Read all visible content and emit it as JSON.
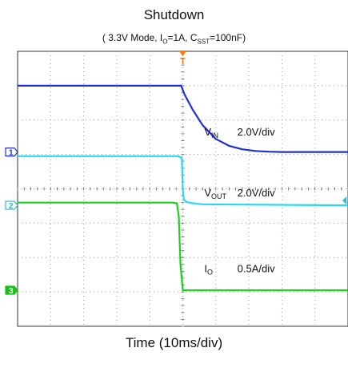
{
  "chart_data": {
    "type": "line",
    "title": "Shutdown",
    "subtitle": {
      "prefix": "( 3.3V Mode, I",
      "io_sub": "O",
      "mid": "=1A, C",
      "c_sub": "SST",
      "suffix": "=100nF)"
    },
    "xlabel": "Time (10ms/div)",
    "grid": true,
    "xlim": [
      0,
      10
    ],
    "ylim": [
      0,
      8
    ],
    "x_unit": "div",
    "event_marker": {
      "label": "T",
      "x": 5.0,
      "color": "#ff7a00"
    },
    "series": [
      {
        "name": "V_IN",
        "label_main": "V",
        "label_sub": "IN",
        "scale": "2.0V/div",
        "channel": "1",
        "color": "#1f2fd6",
        "channel_color": "#1f2fd6",
        "x": [
          0,
          4.95,
          5.05,
          5.3,
          5.6,
          6.0,
          6.4,
          6.8,
          7.2,
          7.6,
          8.0,
          10
        ],
        "y": [
          7.0,
          7.0,
          6.75,
          6.3,
          5.85,
          5.45,
          5.25,
          5.15,
          5.1,
          5.08,
          5.07,
          5.07
        ]
      },
      {
        "name": "V_OUT",
        "label_main": "V",
        "label_sub": "OUT",
        "scale": "2.0V/div",
        "channel": "2",
        "color": "#2cd6f0",
        "channel_color": "#2fb8e0",
        "x": [
          0,
          4.85,
          4.97,
          5.0,
          5.03,
          5.1,
          5.3,
          5.6,
          10
        ],
        "y": [
          4.95,
          4.95,
          4.9,
          4.0,
          3.7,
          3.62,
          3.58,
          3.55,
          3.52
        ]
      },
      {
        "name": "I_O",
        "label_main": "I",
        "label_sub": "O",
        "scale": "0.5A/div",
        "channel": "3",
        "color": "#1bd11b",
        "channel_color": "#1bbf1b",
        "x": [
          0,
          4.7,
          4.82,
          4.88,
          4.93,
          5.0,
          10
        ],
        "y": [
          3.6,
          3.6,
          3.58,
          3.2,
          1.8,
          1.05,
          1.05
        ]
      }
    ]
  }
}
